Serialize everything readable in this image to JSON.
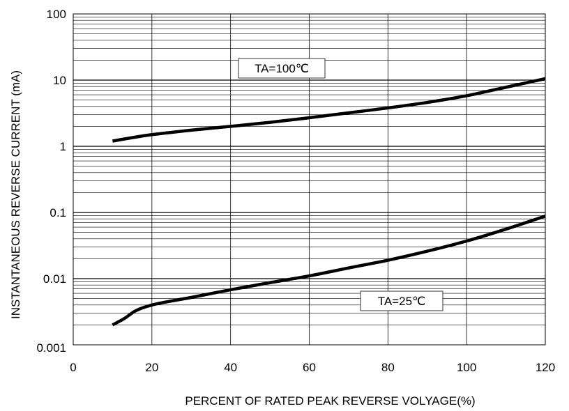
{
  "chart_data": {
    "type": "line",
    "title": "",
    "xlabel": "PERCENT OF RATED PEAK REVERSE VOLYAGE(%)",
    "ylabel": "INSTANTANEOUS REVERSE CURRENT (mA)",
    "xlim": [
      0,
      120
    ],
    "ylim": [
      0.001,
      100
    ],
    "yscale": "log",
    "grid": true,
    "x_ticks": [
      "0",
      "20",
      "40",
      "60",
      "80",
      "100",
      "120"
    ],
    "y_ticks": [
      "100",
      "10",
      "1",
      "0.1",
      "0.01",
      "0.001"
    ],
    "series": [
      {
        "name": "TA=100℃",
        "color": "#000000",
        "x": [
          10,
          15,
          20,
          30,
          40,
          50,
          60,
          70,
          80,
          90,
          100,
          110,
          120
        ],
        "y": [
          1.2,
          1.35,
          1.5,
          1.75,
          2.0,
          2.3,
          2.7,
          3.2,
          3.8,
          4.6,
          5.8,
          7.8,
          10.5
        ]
      },
      {
        "name": "TA=25℃",
        "color": "#000000",
        "x": [
          10,
          13,
          16,
          20,
          25,
          30,
          40,
          50,
          60,
          70,
          80,
          90,
          100,
          110,
          120
        ],
        "y": [
          0.002,
          0.0025,
          0.0033,
          0.004,
          0.0046,
          0.0052,
          0.0068,
          0.0087,
          0.011,
          0.0145,
          0.019,
          0.026,
          0.037,
          0.056,
          0.088
        ]
      }
    ]
  }
}
